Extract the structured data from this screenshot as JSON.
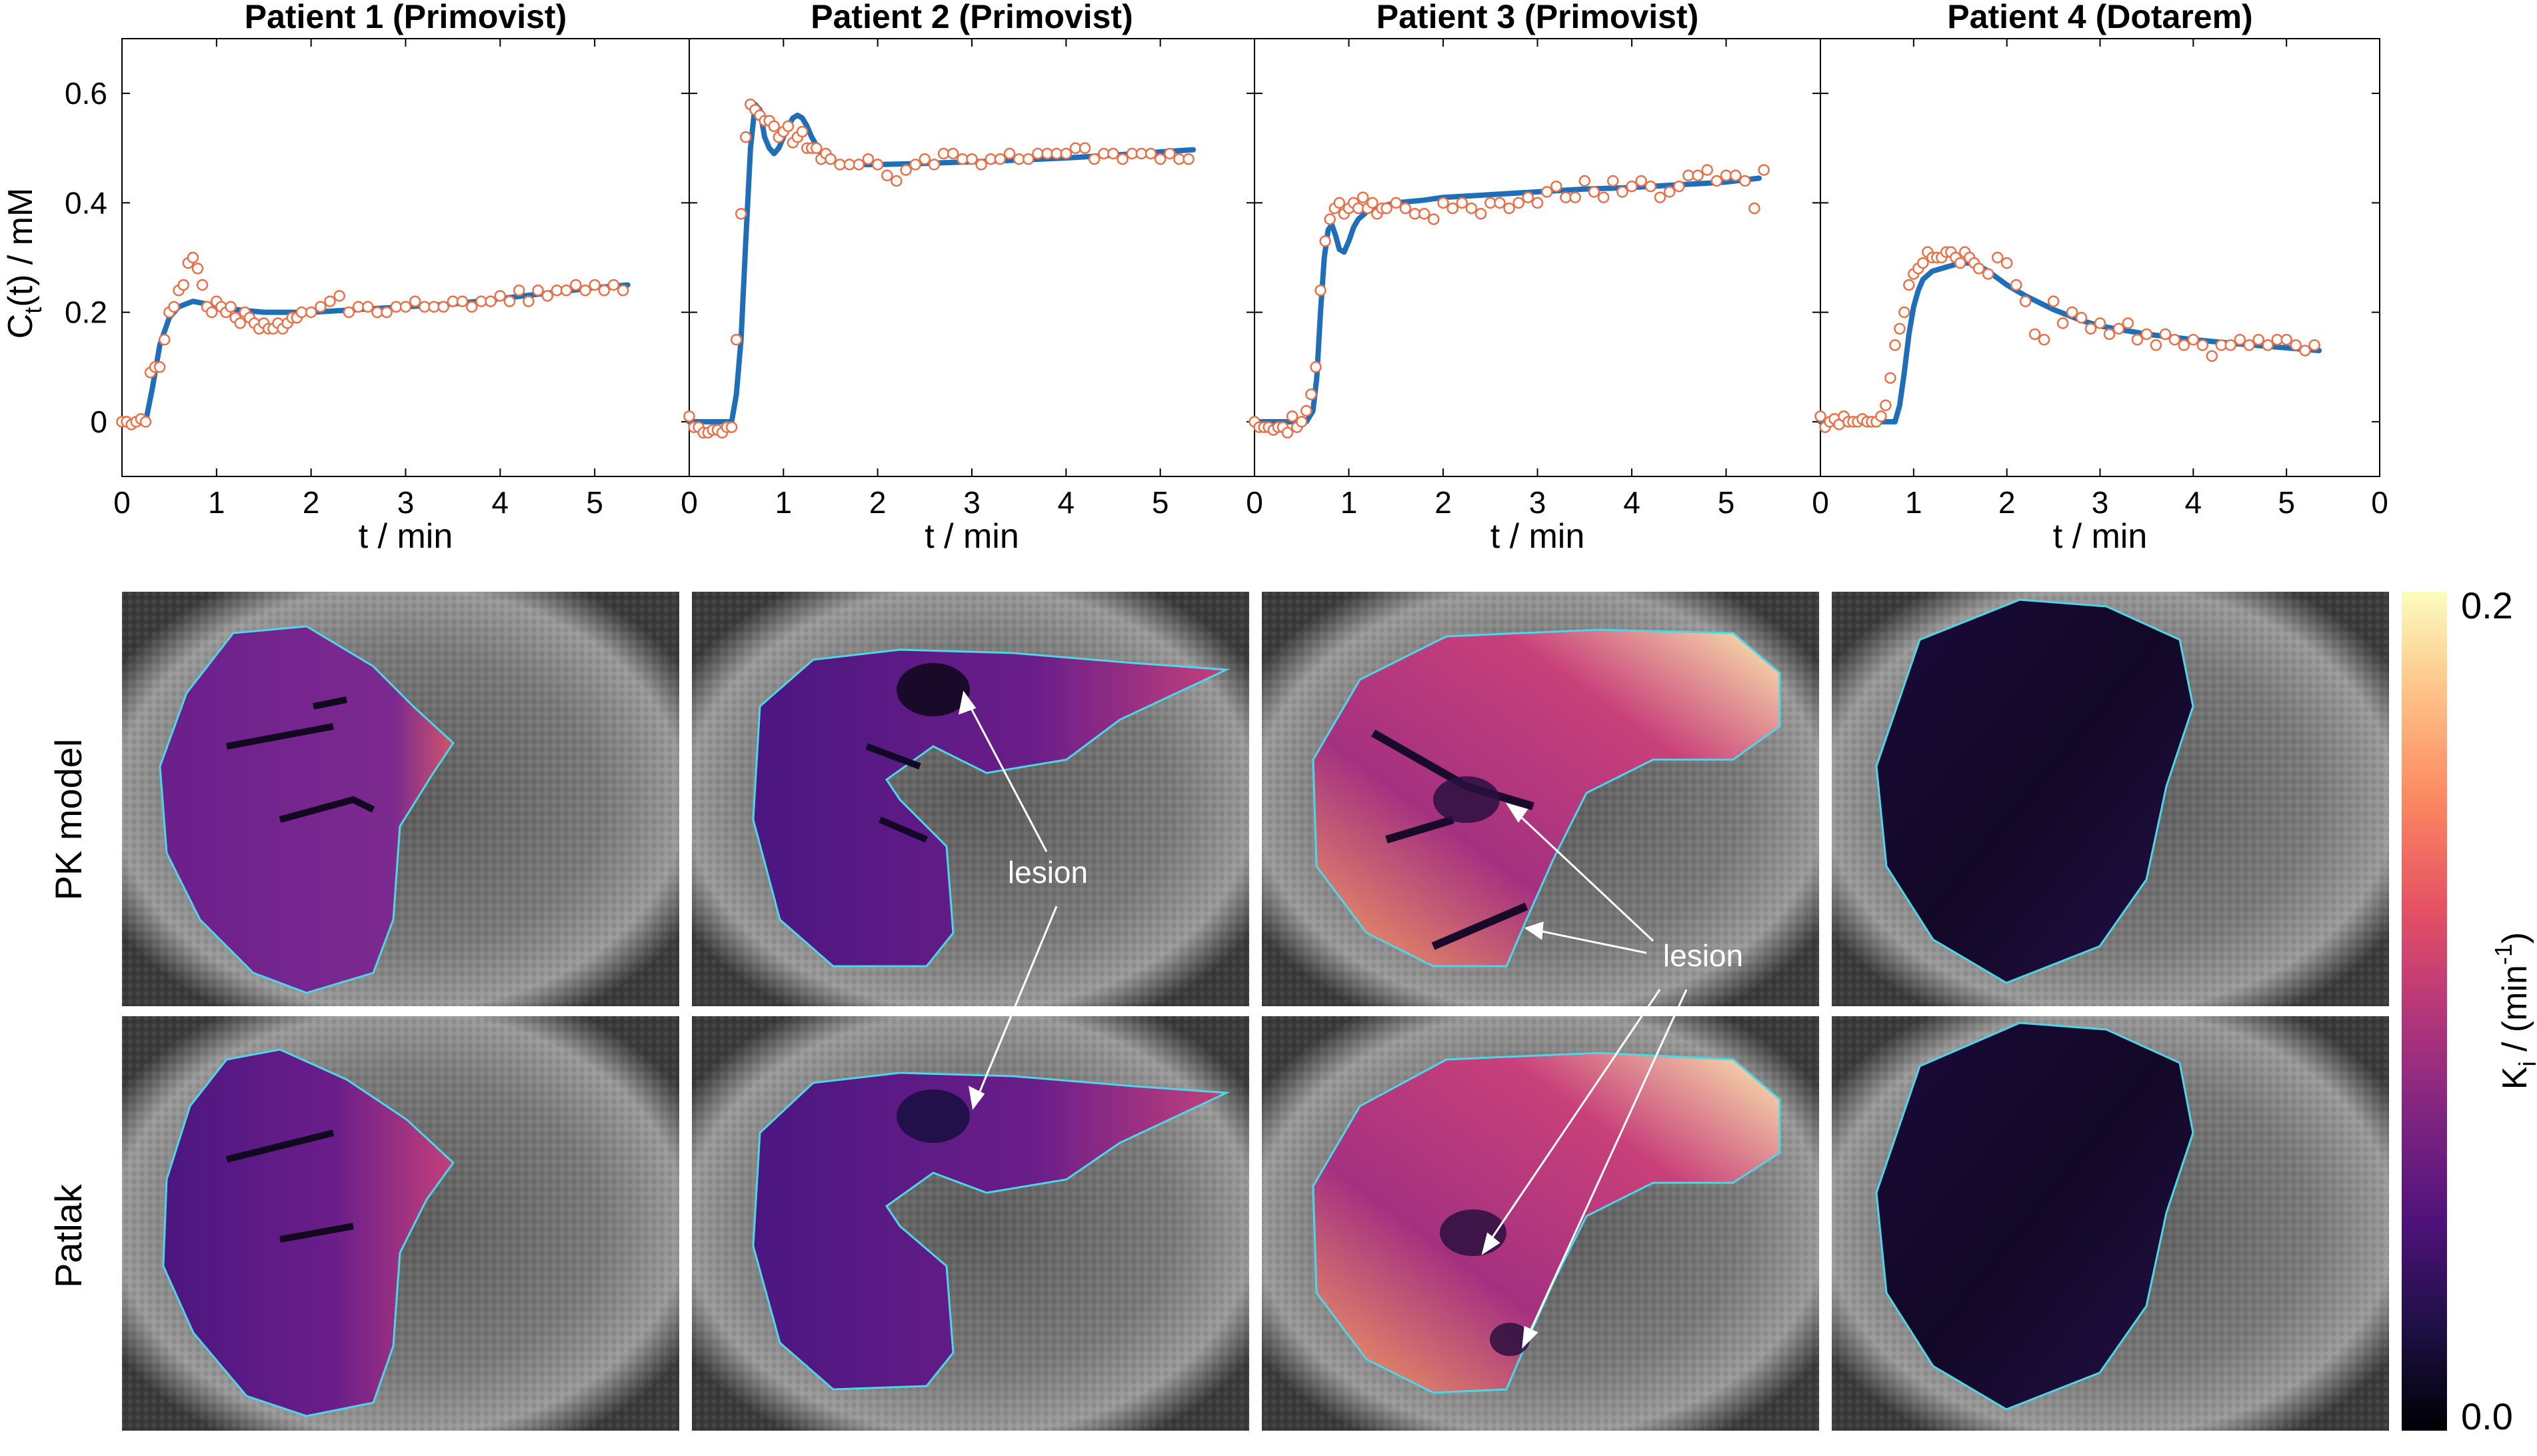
{
  "figure": {
    "row_labels": [
      "PK model",
      "Patlak"
    ],
    "lesion_label": "lesion",
    "colorbar": {
      "label_main": "K",
      "label_sub": "i",
      "label_rest": " / (min",
      "label_sup": "-1",
      "label_end": ")",
      "max_label": "0.2",
      "min_label": "0.0",
      "min": 0.0,
      "max": 0.2
    }
  },
  "colors": {
    "fit_line": "#1f6fb8",
    "data_marker": "#e8714a",
    "roi_outline": "#4fd6e6"
  },
  "chart_data": [
    {
      "type": "line",
      "title": "Patient 1 (Primovist)",
      "xlabel": "t / min",
      "ylabel": "C(t) / mM",
      "xlim": [
        0,
        6
      ],
      "ylim": [
        -0.1,
        0.7
      ],
      "xticks": [
        "0",
        "1",
        "2",
        "3",
        "4",
        "5"
      ],
      "yticks": [
        "0",
        "0.2",
        "0.4",
        "0.6"
      ],
      "series": [
        {
          "name": "fit",
          "style": "line",
          "x": [
            0,
            0.25,
            0.32,
            0.4,
            0.5,
            0.6,
            0.75,
            0.9,
            1.2,
            1.5,
            2,
            2.5,
            3,
            3.5,
            4,
            4.5,
            5,
            5.35
          ],
          "y": [
            0,
            0,
            0.06,
            0.14,
            0.19,
            0.21,
            0.22,
            0.215,
            0.205,
            0.2,
            0.2,
            0.205,
            0.21,
            0.215,
            0.225,
            0.235,
            0.245,
            0.25
          ]
        },
        {
          "name": "data",
          "style": "markers",
          "x": [
            0,
            0.05,
            0.1,
            0.15,
            0.2,
            0.25,
            0.3,
            0.35,
            0.4,
            0.45,
            0.5,
            0.55,
            0.6,
            0.65,
            0.7,
            0.75,
            0.8,
            0.85,
            0.9,
            0.95,
            1,
            1.05,
            1.1,
            1.15,
            1.2,
            1.25,
            1.3,
            1.35,
            1.4,
            1.45,
            1.5,
            1.55,
            1.6,
            1.65,
            1.7,
            1.75,
            1.8,
            1.85,
            1.9,
            2,
            2.1,
            2.2,
            2.3,
            2.4,
            2.5,
            2.6,
            2.7,
            2.8,
            2.9,
            3,
            3.1,
            3.2,
            3.3,
            3.4,
            3.5,
            3.6,
            3.7,
            3.8,
            3.9,
            4,
            4.1,
            4.2,
            4.3,
            4.4,
            4.5,
            4.6,
            4.7,
            4.8,
            4.9,
            5,
            5.1,
            5.2,
            5.3
          ],
          "y": [
            0,
            0,
            -0.005,
            0,
            0.005,
            0,
            0.09,
            0.1,
            0.1,
            0.15,
            0.2,
            0.21,
            0.24,
            0.25,
            0.29,
            0.3,
            0.28,
            0.25,
            0.21,
            0.2,
            0.22,
            0.21,
            0.2,
            0.21,
            0.19,
            0.18,
            0.2,
            0.19,
            0.18,
            0.17,
            0.18,
            0.17,
            0.17,
            0.18,
            0.17,
            0.18,
            0.19,
            0.19,
            0.2,
            0.2,
            0.21,
            0.22,
            0.23,
            0.2,
            0.21,
            0.21,
            0.2,
            0.2,
            0.21,
            0.21,
            0.22,
            0.21,
            0.21,
            0.21,
            0.22,
            0.22,
            0.21,
            0.22,
            0.22,
            0.23,
            0.22,
            0.24,
            0.22,
            0.24,
            0.23,
            0.24,
            0.24,
            0.25,
            0.24,
            0.25,
            0.24,
            0.25,
            0.24
          ]
        }
      ]
    },
    {
      "type": "line",
      "title": "Patient 2  (Primovist)",
      "xlabel": "t / min",
      "xlim": [
        0,
        6
      ],
      "ylim": [
        -0.1,
        0.7
      ],
      "xticks": [
        "0",
        "1",
        "2",
        "3",
        "4",
        "5"
      ],
      "series": [
        {
          "name": "fit",
          "style": "line",
          "x": [
            0,
            0.45,
            0.5,
            0.55,
            0.6,
            0.65,
            0.7,
            0.75,
            0.8,
            0.85,
            0.9,
            0.95,
            1,
            1.05,
            1.1,
            1.15,
            1.2,
            1.25,
            1.3,
            1.4,
            1.5,
            1.6,
            1.8,
            2,
            2.5,
            3,
            3.5,
            4,
            4.5,
            5,
            5.35
          ],
          "y": [
            0,
            0,
            0.05,
            0.15,
            0.33,
            0.5,
            0.58,
            0.57,
            0.52,
            0.5,
            0.49,
            0.5,
            0.52,
            0.54,
            0.555,
            0.56,
            0.555,
            0.54,
            0.52,
            0.49,
            0.478,
            0.472,
            0.47,
            0.47,
            0.472,
            0.475,
            0.478,
            0.482,
            0.487,
            0.493,
            0.497
          ]
        },
        {
          "name": "data",
          "style": "markers",
          "x": [
            0,
            0.05,
            0.1,
            0.15,
            0.2,
            0.25,
            0.3,
            0.35,
            0.4,
            0.45,
            0.5,
            0.55,
            0.6,
            0.65,
            0.7,
            0.75,
            0.8,
            0.85,
            0.9,
            0.95,
            1,
            1.05,
            1.1,
            1.15,
            1.2,
            1.25,
            1.3,
            1.35,
            1.4,
            1.45,
            1.5,
            1.6,
            1.7,
            1.8,
            1.9,
            2,
            2.1,
            2.2,
            2.3,
            2.4,
            2.5,
            2.6,
            2.7,
            2.8,
            2.9,
            3,
            3.1,
            3.2,
            3.3,
            3.4,
            3.5,
            3.6,
            3.7,
            3.8,
            3.9,
            4,
            4.1,
            4.2,
            4.3,
            4.4,
            4.5,
            4.6,
            4.7,
            4.8,
            4.9,
            5,
            5.1,
            5.2,
            5.3
          ],
          "y": [
            0.01,
            -0.01,
            -0.01,
            -0.02,
            -0.02,
            -0.015,
            -0.015,
            -0.02,
            -0.01,
            -0.01,
            0.15,
            0.38,
            0.52,
            0.58,
            0.57,
            0.56,
            0.55,
            0.55,
            0.54,
            0.52,
            0.53,
            0.54,
            0.51,
            0.52,
            0.53,
            0.5,
            0.5,
            0.5,
            0.48,
            0.49,
            0.48,
            0.47,
            0.47,
            0.47,
            0.48,
            0.47,
            0.45,
            0.44,
            0.46,
            0.47,
            0.48,
            0.47,
            0.49,
            0.49,
            0.48,
            0.48,
            0.47,
            0.48,
            0.48,
            0.49,
            0.48,
            0.48,
            0.49,
            0.49,
            0.49,
            0.49,
            0.5,
            0.5,
            0.48,
            0.49,
            0.49,
            0.48,
            0.49,
            0.49,
            0.49,
            0.48,
            0.49,
            0.48,
            0.48
          ]
        }
      ]
    },
    {
      "type": "line",
      "title": "Patient 3  (Primovist)",
      "xlabel": "t / min",
      "xlim": [
        0,
        6
      ],
      "ylim": [
        -0.1,
        0.7
      ],
      "xticks": [
        "0",
        "1",
        "2",
        "3",
        "4",
        "5"
      ],
      "series": [
        {
          "name": "fit",
          "style": "line",
          "x": [
            0,
            0.55,
            0.62,
            0.66,
            0.7,
            0.74,
            0.78,
            0.82,
            0.86,
            0.9,
            0.95,
            1,
            1.05,
            1.1,
            1.2,
            1.3,
            1.5,
            1.8,
            2,
            2.5,
            3,
            3.5,
            4,
            4.5,
            5,
            5.35
          ],
          "y": [
            0,
            0,
            0.02,
            0.08,
            0.2,
            0.3,
            0.35,
            0.36,
            0.34,
            0.315,
            0.31,
            0.33,
            0.355,
            0.37,
            0.385,
            0.392,
            0.4,
            0.405,
            0.41,
            0.415,
            0.42,
            0.425,
            0.428,
            0.433,
            0.438,
            0.445
          ]
        },
        {
          "name": "data",
          "style": "markers",
          "x": [
            0,
            0.05,
            0.1,
            0.15,
            0.2,
            0.25,
            0.3,
            0.35,
            0.4,
            0.45,
            0.5,
            0.55,
            0.6,
            0.65,
            0.7,
            0.75,
            0.8,
            0.85,
            0.9,
            0.95,
            1,
            1.05,
            1.1,
            1.15,
            1.2,
            1.25,
            1.3,
            1.35,
            1.4,
            1.5,
            1.6,
            1.7,
            1.8,
            1.9,
            2,
            2.1,
            2.2,
            2.3,
            2.4,
            2.5,
            2.6,
            2.7,
            2.8,
            2.9,
            3,
            3.1,
            3.2,
            3.3,
            3.4,
            3.5,
            3.6,
            3.7,
            3.8,
            3.9,
            4,
            4.1,
            4.2,
            4.3,
            4.4,
            4.5,
            4.6,
            4.7,
            4.8,
            4.9,
            5,
            5.1,
            5.2,
            5.3,
            5.4
          ],
          "y": [
            0,
            -0.01,
            -0.01,
            -0.01,
            -0.015,
            -0.01,
            -0.01,
            -0.02,
            0.01,
            -0.01,
            0.0,
            0.02,
            0.05,
            0.1,
            0.24,
            0.33,
            0.37,
            0.39,
            0.4,
            0.38,
            0.39,
            0.4,
            0.39,
            0.41,
            0.39,
            0.4,
            0.38,
            0.39,
            0.39,
            0.4,
            0.39,
            0.38,
            0.38,
            0.37,
            0.4,
            0.39,
            0.4,
            0.39,
            0.38,
            0.4,
            0.4,
            0.39,
            0.4,
            0.41,
            0.4,
            0.42,
            0.43,
            0.41,
            0.41,
            0.44,
            0.42,
            0.41,
            0.44,
            0.42,
            0.43,
            0.44,
            0.43,
            0.41,
            0.42,
            0.43,
            0.45,
            0.45,
            0.46,
            0.44,
            0.45,
            0.45,
            0.44,
            0.39,
            0.46
          ]
        }
      ]
    },
    {
      "type": "line",
      "title": "Patient 4 (Dotarem)",
      "xlabel": "t / min",
      "xlim": [
        0,
        6
      ],
      "ylim": [
        -0.1,
        0.7
      ],
      "xticks": [
        "0",
        "1",
        "2",
        "3",
        "4",
        "5",
        "0"
      ],
      "series": [
        {
          "name": "fit",
          "style": "line",
          "x": [
            0,
            0.8,
            0.85,
            0.9,
            0.95,
            1,
            1.05,
            1.1,
            1.2,
            1.3,
            1.4,
            1.5,
            1.6,
            1.7,
            1.8,
            2,
            2.2,
            2.5,
            2.8,
            3,
            3.5,
            4,
            4.5,
            5,
            5.35
          ],
          "y": [
            0,
            0,
            0.03,
            0.09,
            0.16,
            0.21,
            0.24,
            0.26,
            0.275,
            0.28,
            0.285,
            0.29,
            0.29,
            0.285,
            0.275,
            0.25,
            0.23,
            0.205,
            0.185,
            0.175,
            0.16,
            0.15,
            0.142,
            0.135,
            0.13
          ]
        },
        {
          "name": "data",
          "style": "markers",
          "x": [
            0,
            0.05,
            0.1,
            0.15,
            0.2,
            0.25,
            0.3,
            0.35,
            0.4,
            0.45,
            0.5,
            0.55,
            0.6,
            0.65,
            0.7,
            0.75,
            0.8,
            0.85,
            0.9,
            0.95,
            1,
            1.05,
            1.1,
            1.15,
            1.2,
            1.25,
            1.3,
            1.35,
            1.4,
            1.45,
            1.5,
            1.55,
            1.6,
            1.65,
            1.7,
            1.8,
            1.9,
            2,
            2.1,
            2.2,
            2.3,
            2.4,
            2.5,
            2.6,
            2.7,
            2.8,
            2.9,
            3,
            3.1,
            3.2,
            3.3,
            3.4,
            3.5,
            3.6,
            3.7,
            3.8,
            3.9,
            4,
            4.1,
            4.2,
            4.3,
            4.4,
            4.5,
            4.6,
            4.7,
            4.8,
            4.9,
            5,
            5.1,
            5.2,
            5.3
          ],
          "y": [
            0.01,
            -0.01,
            0.0,
            0.005,
            -0.005,
            0.01,
            0.0,
            0.0,
            0.0,
            0.005,
            0.0,
            0.0,
            0.0,
            0.01,
            0.03,
            0.08,
            0.14,
            0.17,
            0.2,
            0.25,
            0.27,
            0.28,
            0.29,
            0.31,
            0.3,
            0.3,
            0.3,
            0.31,
            0.31,
            0.3,
            0.29,
            0.31,
            0.3,
            0.29,
            0.28,
            0.27,
            0.3,
            0.29,
            0.25,
            0.22,
            0.16,
            0.15,
            0.22,
            0.18,
            0.2,
            0.19,
            0.17,
            0.18,
            0.16,
            0.17,
            0.18,
            0.15,
            0.16,
            0.14,
            0.16,
            0.15,
            0.14,
            0.15,
            0.14,
            0.12,
            0.14,
            0.14,
            0.15,
            0.14,
            0.15,
            0.14,
            0.15,
            0.15,
            0.14,
            0.13,
            0.14
          ]
        }
      ]
    }
  ]
}
